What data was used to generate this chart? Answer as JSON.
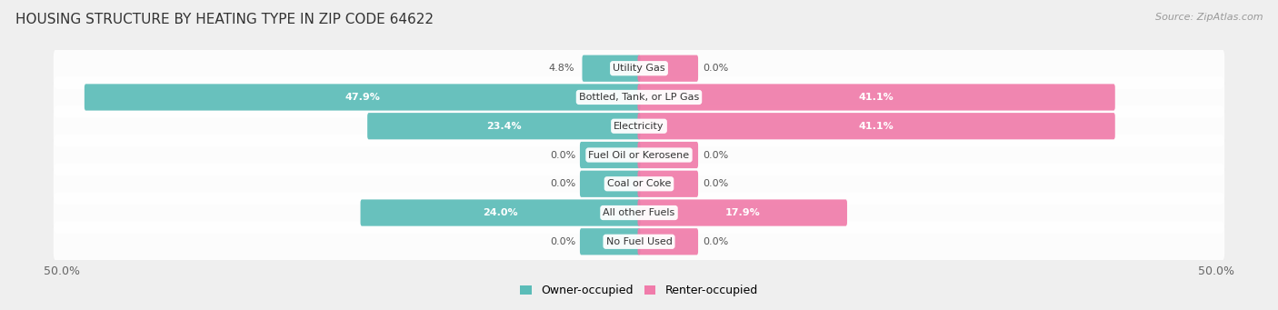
{
  "title": "HOUSING STRUCTURE BY HEATING TYPE IN ZIP CODE 64622",
  "source": "Source: ZipAtlas.com",
  "categories": [
    "Utility Gas",
    "Bottled, Tank, or LP Gas",
    "Electricity",
    "Fuel Oil or Kerosene",
    "Coal or Coke",
    "All other Fuels",
    "No Fuel Used"
  ],
  "owner_values": [
    4.8,
    47.9,
    23.4,
    0.0,
    0.0,
    24.0,
    0.0
  ],
  "renter_values": [
    0.0,
    41.1,
    41.1,
    0.0,
    0.0,
    17.9,
    0.0
  ],
  "owner_color": "#5bbcb8",
  "renter_color": "#f07caa",
  "owner_label": "Owner-occupied",
  "renter_label": "Renter-occupied",
  "axis_max": 50.0,
  "background_color": "#efefef",
  "bar_background": "#e0e0e0",
  "title_fontsize": 11,
  "source_fontsize": 8,
  "label_fontsize": 8,
  "category_fontsize": 8,
  "zero_stub": 5.0
}
